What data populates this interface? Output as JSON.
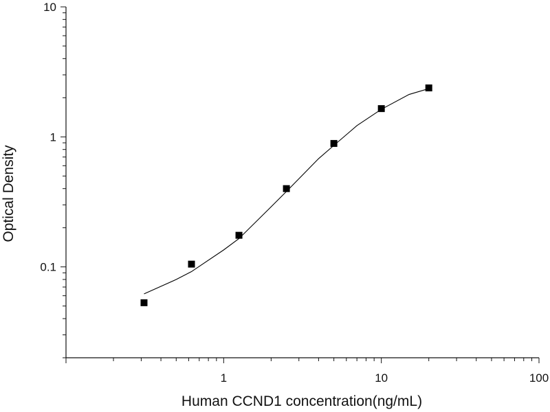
{
  "chart_data": {
    "type": "scatter",
    "title": "",
    "xlabel": "Human CCND1 concentration(ng/mL)",
    "ylabel": "Optical Density",
    "xscale": "log",
    "yscale": "log",
    "xlim": [
      0.1,
      100
    ],
    "ylim": [
      0.02,
      10
    ],
    "grid": false,
    "legend": "none",
    "x_tick_labels": [
      {
        "value": 1,
        "label": "1"
      },
      {
        "value": 10,
        "label": "10"
      },
      {
        "value": 100,
        "label": "100"
      }
    ],
    "y_tick_labels": [
      {
        "value": 0.1,
        "label": "0.1"
      },
      {
        "value": 1,
        "label": "1"
      },
      {
        "value": 10,
        "label": "10"
      }
    ],
    "series": [
      {
        "marker": "square",
        "color": "#000000",
        "points": [
          {
            "x": 0.3125,
            "y": 0.053
          },
          {
            "x": 0.625,
            "y": 0.105
          },
          {
            "x": 1.25,
            "y": 0.175
          },
          {
            "x": 2.5,
            "y": 0.4
          },
          {
            "x": 5,
            "y": 0.89
          },
          {
            "x": 10,
            "y": 1.65
          },
          {
            "x": 20,
            "y": 2.38
          }
        ]
      }
    ],
    "fit_curve": {
      "type": "line",
      "color": "#000000",
      "points": [
        {
          "x": 0.3125,
          "y": 0.062
        },
        {
          "x": 0.5,
          "y": 0.08
        },
        {
          "x": 0.625,
          "y": 0.092
        },
        {
          "x": 1,
          "y": 0.135
        },
        {
          "x": 1.25,
          "y": 0.165
        },
        {
          "x": 2,
          "y": 0.29
        },
        {
          "x": 2.5,
          "y": 0.38
        },
        {
          "x": 4,
          "y": 0.68
        },
        {
          "x": 5,
          "y": 0.86
        },
        {
          "x": 7,
          "y": 1.22
        },
        {
          "x": 10,
          "y": 1.63
        },
        {
          "x": 15,
          "y": 2.12
        },
        {
          "x": 20,
          "y": 2.35
        }
      ]
    }
  }
}
